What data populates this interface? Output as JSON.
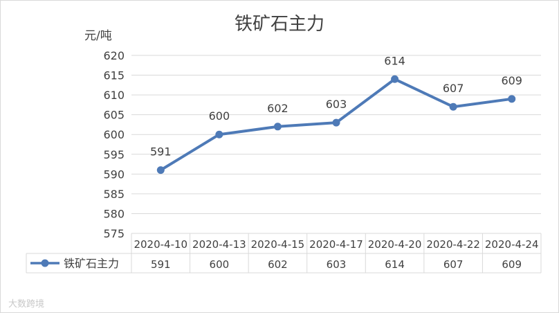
{
  "chart_data": {
    "type": "line",
    "title": "铁矿石主力",
    "ylabel": "元/吨",
    "categories": [
      "2020-4-10",
      "2020-4-13",
      "2020-4-15",
      "2020-4-17",
      "2020-4-20",
      "2020-4-22",
      "2020-4-24"
    ],
    "series": [
      {
        "name": "铁矿石主力",
        "values": [
          591,
          600,
          602,
          603,
          614,
          607,
          609
        ]
      }
    ],
    "ylim": [
      575,
      620
    ],
    "yticks": [
      575,
      580,
      585,
      590,
      595,
      600,
      605,
      610,
      615,
      620
    ],
    "grid": true,
    "data_labels": true,
    "data_table": true,
    "color": "#4e7ab7"
  },
  "watermark": "大数跨境"
}
